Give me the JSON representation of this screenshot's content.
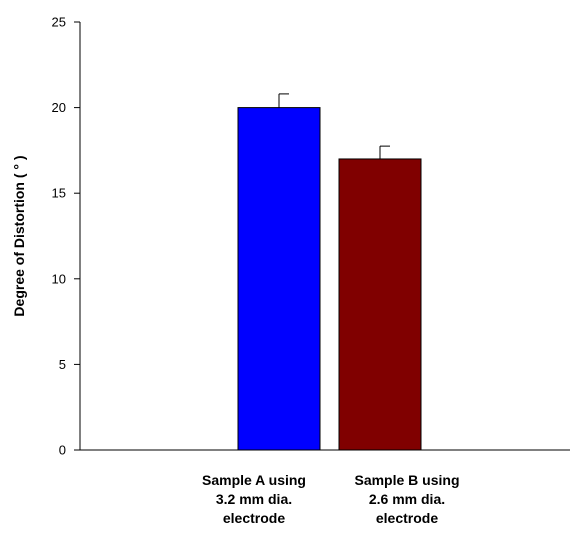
{
  "chart_data": {
    "type": "bar",
    "title": "",
    "xlabel": "",
    "ylabel": "Degree of Distortion ( ° )",
    "ylim": [
      0,
      25
    ],
    "yticks": [
      0,
      5,
      10,
      15,
      20,
      25
    ],
    "grid": false,
    "legend": "none",
    "categories": [
      [
        "Sample A using",
        "3.2 mm dia.",
        "electrode"
      ],
      [
        "Sample B using",
        "2.6 mm dia.",
        "electrode"
      ]
    ],
    "values": [
      20.0,
      17.0
    ],
    "errors": [
      0.8,
      0.75
    ],
    "colors": [
      "#0000FF",
      "#800000"
    ]
  }
}
